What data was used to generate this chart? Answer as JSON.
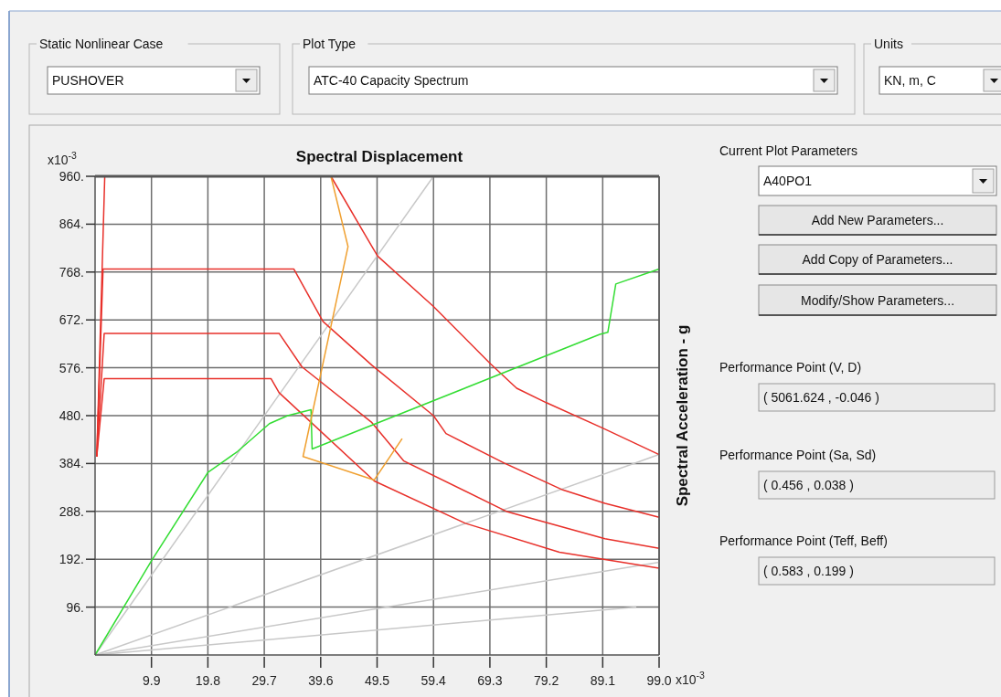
{
  "chart_data": {
    "type": "line",
    "title": "Spectral Displacement",
    "ylabel": "Spectral Acceleration - g",
    "xlim": [
      0,
      99
    ],
    "ylim": [
      0,
      960
    ],
    "xticks": [
      9.9,
      19.8,
      29.7,
      39.6,
      49.5,
      59.4,
      69.3,
      79.2,
      89.1,
      {
        "value": 99,
        "label": "99.0"
      }
    ],
    "yticks": [
      {
        "value": 96,
        "label": "96."
      },
      {
        "value": 192,
        "label": "192."
      },
      {
        "value": 288,
        "label": "288."
      },
      {
        "value": 384,
        "label": "384."
      },
      {
        "value": 480,
        "label": "480."
      },
      {
        "value": 576,
        "label": "576."
      },
      {
        "value": 672,
        "label": "672."
      },
      {
        "value": 768,
        "label": "768."
      },
      {
        "value": 864,
        "label": "864."
      },
      {
        "value": 960,
        "label": "960."
      }
    ],
    "grid": true,
    "series": [
      {
        "color": "#c8c8c8",
        "x": [
          0,
          59.4
        ],
        "values": [
          0,
          960
        ]
      },
      {
        "color": "#c8c8c8",
        "x": [
          0,
          99
        ],
        "values": [
          0,
          402
        ]
      },
      {
        "color": "#c8c8c8",
        "x": [
          0,
          99
        ],
        "values": [
          0,
          186
        ]
      },
      {
        "color": "#c8c8c8",
        "x": [
          0,
          95
        ],
        "values": [
          0,
          96
        ]
      },
      {
        "color": "#e8302a",
        "x": [
          0.3,
          1.7,
          41.4,
          48.6,
          49.6,
          59.4,
          69.4,
          74.0,
          79.2,
          89.1,
          99.0
        ],
        "values": [
          398,
          960,
          960,
          819,
          800,
          699,
          584,
          535,
          506,
          455,
          402
        ]
      },
      {
        "color": "#e8302a",
        "x": [
          0.3,
          1.4,
          34.9,
          40.0,
          48.6,
          59.4,
          61.6,
          71.8,
          82.1,
          89.5,
          99.0
        ],
        "values": [
          398,
          774,
          774,
          669,
          581,
          480,
          444,
          385,
          331,
          304,
          276
        ]
      },
      {
        "color": "#e8302a",
        "x": [
          0.3,
          1.6,
          32.3,
          36.3,
          48.5,
          54.2,
          72.4,
          89.5,
          99.0
        ],
        "values": [
          398,
          645,
          645,
          578,
          467,
          389,
          287,
          233,
          214
        ]
      },
      {
        "color": "#e8302a",
        "x": [
          0.3,
          1.6,
          30.9,
          32.3,
          49.0,
          65.0,
          81.5,
          99.0
        ],
        "values": [
          398,
          554,
          554,
          526,
          349,
          264,
          206,
          174
        ]
      },
      {
        "color": "#33dd33",
        "x": [
          0,
          9.9,
          19.8,
          25.0,
          30.6,
          33.8,
          37.9,
          38.1,
          88.6,
          90.0,
          91.4,
          99.0
        ],
        "values": [
          0,
          189,
          366,
          408,
          464,
          480,
          492,
          413,
          643,
          647,
          744,
          774
        ]
      },
      {
        "color": "#f0a030",
        "x": [
          41.4,
          44.4,
          36.5,
          49.0,
          53.9
        ],
        "values": [
          960,
          819,
          398,
          351,
          434
        ]
      }
    ],
    "annotations": [
      "x10$^{-3}$",
      "x10$^{-3}$",
      "Static Nonlinear Case",
      "PUSHOVER",
      "Plot Type",
      "ATC-40 Capacity Spectrum",
      "Units",
      "KN, m, C",
      "Current Plot Parameters",
      "A40PO1",
      "Add New Parameters...",
      "Add Copy of Parameters...",
      "Modify/Show Parameters...",
      "Performance Point (V, D)",
      "( 5061.624 , -0.046 )",
      "Performance Point (Sa, Sd)",
      "( 0.456 , 0.038 )",
      "Performance Point (Teff, Beff)",
      "( 0.583 , 0.199 )"
    ]
  }
}
